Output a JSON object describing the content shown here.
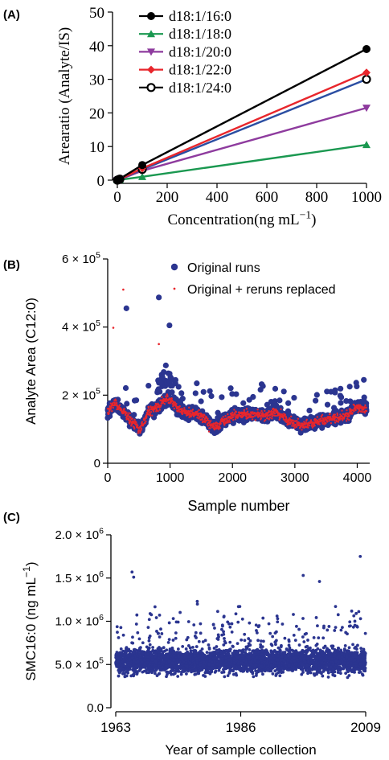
{
  "panels": {
    "a": {
      "letter": "(A)"
    },
    "b": {
      "letter": "(B)"
    },
    "c": {
      "letter": "(C)"
    }
  },
  "chart_data": [
    {
      "type": "line",
      "ylabel": "Arearatio (Analyte/IS)",
      "xlabel": "Concentration(ng mL−1)",
      "xlim": [
        0,
        1000
      ],
      "ylim": [
        0,
        50
      ],
      "xticks": [
        "0",
        "200",
        "400",
        "600",
        "800",
        "1000"
      ],
      "yticks": [
        "0",
        "10",
        "20",
        "30",
        "40",
        "50"
      ],
      "legend_position": "top-left",
      "series": [
        {
          "name": "d18:1/16:0",
          "color": "#000000",
          "marker": "circle-filled",
          "x": [
            0,
            5,
            10,
            100,
            1000
          ],
          "y": [
            0,
            0.2,
            0.4,
            4.5,
            39
          ]
        },
        {
          "name": "d18:1/18:0",
          "color": "#1a9850",
          "marker": "triangle-up",
          "x": [
            0,
            5,
            10,
            100,
            1000
          ],
          "y": [
            0,
            0.05,
            0.1,
            1.0,
            10.5
          ]
        },
        {
          "name": "d18:1/20:0",
          "color": "#8e3b9e",
          "marker": "triangle-down",
          "x": [
            0,
            5,
            10,
            100,
            1000
          ],
          "y": [
            0,
            0.1,
            0.2,
            2.8,
            21.5
          ]
        },
        {
          "name": "d18:1/22:0",
          "color": "#e8262c",
          "marker": "diamond",
          "x": [
            0,
            5,
            10,
            100,
            1000
          ],
          "y": [
            0,
            0.15,
            0.3,
            3.5,
            32
          ]
        },
        {
          "name": "d18:1/24:0",
          "color": "#000000",
          "line_color": "#2b4ea2",
          "marker": "circle-open",
          "x": [
            0,
            5,
            10,
            100,
            1000
          ],
          "y": [
            0,
            0.15,
            0.3,
            3.2,
            30
          ]
        }
      ]
    },
    {
      "type": "scatter",
      "ylabel": "Analyte Area (C12:0)",
      "xlabel": "Sample number",
      "xlim": [
        0,
        4200
      ],
      "ylim": [
        0,
        600000
      ],
      "xticks": [
        "0",
        "1000",
        "2000",
        "3000",
        "4000"
      ],
      "yticks": [
        {
          "mant": "0",
          "exp": ""
        },
        {
          "mant": "2 × 10",
          "exp": "5"
        },
        {
          "mant": "4 × 10",
          "exp": "5"
        },
        {
          "mant": "6 × 10",
          "exp": "5"
        }
      ],
      "legend_position": "top-right",
      "series": [
        {
          "name": "Original runs",
          "color": "#2b3590",
          "n": 4150,
          "typical_range": [
            100000,
            200000
          ],
          "max": 455000
        },
        {
          "name": "Original + reruns replaced",
          "color": "#e8262c",
          "n": 4150,
          "typical_range": [
            110000,
            190000
          ],
          "max": 510000
        }
      ],
      "notable_points": [
        {
          "x": 300,
          "y": 455000
        },
        {
          "x": 820,
          "y": 487000
        },
        {
          "x": 990,
          "y": 405000
        },
        {
          "x": 90,
          "y": 398000
        },
        {
          "x": 250,
          "y": 510000
        }
      ]
    },
    {
      "type": "scatter",
      "ylabel": "SMC16:0 (ng mL−1)",
      "xlabel": "Year of sample collection",
      "xlim": [
        1963,
        2009
      ],
      "ylim": [
        0,
        2000000
      ],
      "xticks": [
        "1963",
        "1986",
        "2009"
      ],
      "yticks": [
        {
          "mant": "0.0",
          "exp": ""
        },
        {
          "mant": "5.0 × 10",
          "exp": "5"
        },
        {
          "mant": "1.0 × 10",
          "exp": "6"
        },
        {
          "mant": "1.5 × 10",
          "exp": "6"
        },
        {
          "mant": "2.0 × 10",
          "exp": "6"
        }
      ],
      "series": [
        {
          "color": "#2b3590",
          "n": 4000,
          "typical_range": [
            350000,
            750000
          ],
          "max": 1750000
        }
      ],
      "notable_points": [
        {
          "x": 1966,
          "y": 1570000
        },
        {
          "x": 1966.3,
          "y": 1510000
        },
        {
          "x": 1997.5,
          "y": 1530000
        },
        {
          "x": 2000.5,
          "y": 1460000
        },
        {
          "x": 2008,
          "y": 1750000
        },
        {
          "x": 1978,
          "y": 1230000
        }
      ]
    }
  ]
}
